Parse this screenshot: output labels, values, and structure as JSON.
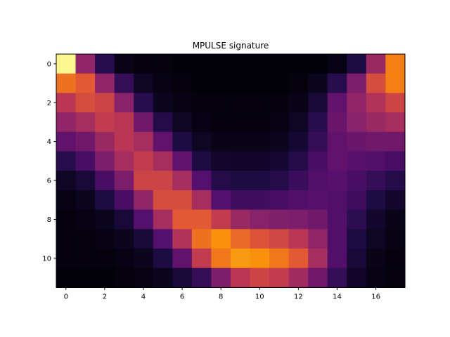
{
  "chart_data": {
    "type": "heatmap",
    "title": "MPULSE signature",
    "xlabel": "",
    "ylabel": "",
    "colormap": "inferno",
    "value_range": [
      0,
      1
    ],
    "x_ticks": [
      0,
      2,
      4,
      6,
      8,
      10,
      12,
      14,
      16
    ],
    "y_ticks": [
      0,
      2,
      4,
      6,
      8,
      10
    ],
    "rows": 12,
    "cols": 18,
    "values": [
      [
        0.98,
        0.4,
        0.15,
        0.04,
        0.02,
        0.02,
        0.01,
        0.01,
        0.01,
        0.01,
        0.01,
        0.01,
        0.01,
        0.01,
        0.03,
        0.12,
        0.42,
        0.72
      ],
      [
        0.68,
        0.62,
        0.4,
        0.18,
        0.06,
        0.03,
        0.02,
        0.01,
        0.01,
        0.01,
        0.01,
        0.01,
        0.02,
        0.05,
        0.15,
        0.35,
        0.58,
        0.72
      ],
      [
        0.5,
        0.58,
        0.55,
        0.38,
        0.15,
        0.05,
        0.03,
        0.02,
        0.02,
        0.02,
        0.02,
        0.02,
        0.04,
        0.1,
        0.28,
        0.4,
        0.48,
        0.55
      ],
      [
        0.4,
        0.45,
        0.52,
        0.5,
        0.32,
        0.14,
        0.06,
        0.03,
        0.02,
        0.02,
        0.02,
        0.03,
        0.06,
        0.15,
        0.3,
        0.38,
        0.42,
        0.45
      ],
      [
        0.28,
        0.32,
        0.42,
        0.5,
        0.45,
        0.28,
        0.12,
        0.06,
        0.04,
        0.04,
        0.04,
        0.05,
        0.09,
        0.18,
        0.28,
        0.3,
        0.32,
        0.32
      ],
      [
        0.15,
        0.22,
        0.35,
        0.45,
        0.52,
        0.45,
        0.28,
        0.12,
        0.08,
        0.07,
        0.07,
        0.09,
        0.14,
        0.22,
        0.28,
        0.26,
        0.24,
        0.22
      ],
      [
        0.06,
        0.1,
        0.22,
        0.35,
        0.55,
        0.55,
        0.45,
        0.25,
        0.14,
        0.12,
        0.12,
        0.14,
        0.19,
        0.24,
        0.26,
        0.22,
        0.18,
        0.14
      ],
      [
        0.03,
        0.05,
        0.12,
        0.22,
        0.4,
        0.58,
        0.58,
        0.45,
        0.25,
        0.2,
        0.2,
        0.22,
        0.24,
        0.26,
        0.24,
        0.2,
        0.12,
        0.08
      ],
      [
        0.02,
        0.03,
        0.05,
        0.1,
        0.25,
        0.45,
        0.62,
        0.62,
        0.52,
        0.42,
        0.38,
        0.36,
        0.35,
        0.32,
        0.24,
        0.16,
        0.08,
        0.04
      ],
      [
        0.02,
        0.02,
        0.03,
        0.05,
        0.1,
        0.25,
        0.48,
        0.68,
        0.76,
        0.66,
        0.6,
        0.56,
        0.5,
        0.4,
        0.24,
        0.12,
        0.06,
        0.03
      ],
      [
        0.02,
        0.02,
        0.02,
        0.03,
        0.05,
        0.12,
        0.28,
        0.52,
        0.7,
        0.78,
        0.76,
        0.7,
        0.62,
        0.45,
        0.24,
        0.1,
        0.04,
        0.02
      ],
      [
        0.01,
        0.01,
        0.01,
        0.02,
        0.03,
        0.05,
        0.1,
        0.18,
        0.35,
        0.5,
        0.55,
        0.52,
        0.44,
        0.32,
        0.18,
        0.07,
        0.03,
        0.02
      ]
    ]
  }
}
